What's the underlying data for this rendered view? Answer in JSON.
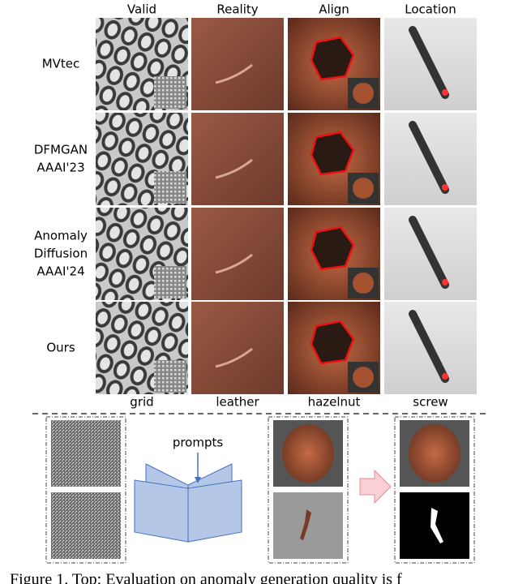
{
  "columns": [
    "Valid",
    "Reality",
    "Align",
    "Location"
  ],
  "rows": [
    [
      "MVtec"
    ],
    [
      "DFMGAN",
      "AAAI'23"
    ],
    [
      "Anomaly",
      "Diffusion",
      "AAAI'24"
    ],
    [
      "Ours"
    ]
  ],
  "categories": [
    "grid",
    "leather",
    "hazelnut",
    "screw"
  ],
  "diagram": {
    "label": "prompts"
  },
  "caption": "Figure 1. Top: Evaluation on anomaly generation quality is f"
}
